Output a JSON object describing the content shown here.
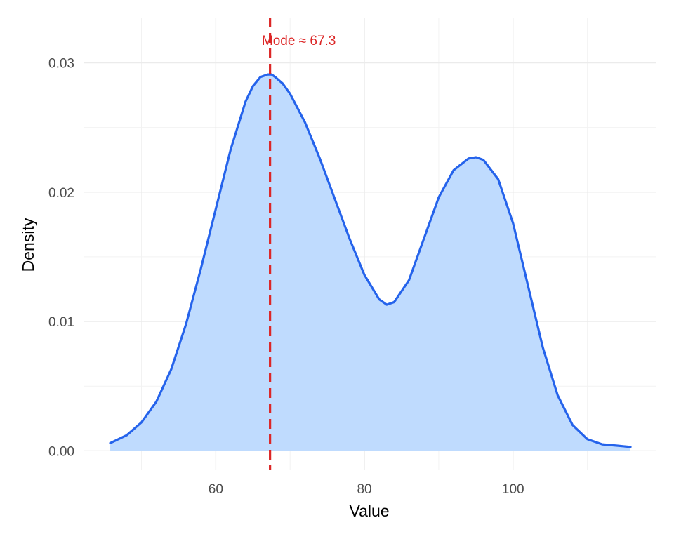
{
  "chart_data": {
    "type": "area",
    "title": "",
    "xlabel": "Value",
    "ylabel": "Density",
    "xlim": [
      42.3,
      119.2
    ],
    "ylim": [
      -0.0015,
      0.0335
    ],
    "x_ticks": [
      60,
      80,
      100
    ],
    "x_tick_labels": [
      "60",
      "80",
      "100"
    ],
    "x_minor_ticks": [
      50,
      70,
      90,
      110
    ],
    "y_ticks": [
      0.0,
      0.01,
      0.02,
      0.03
    ],
    "y_tick_labels": [
      "0.00",
      "0.01",
      "0.02",
      "0.03"
    ],
    "y_minor_ticks": [
      0.005,
      0.015,
      0.025
    ],
    "grid": true,
    "legend": "none",
    "fill_color": "#bfdbfe",
    "line_color": "#2563eb",
    "series": [
      {
        "x": [
          45.8,
          48,
          50,
          52,
          54,
          56,
          58,
          60,
          62,
          64,
          65,
          66,
          67,
          67.5,
          68,
          69,
          70,
          72,
          74,
          76,
          78,
          80,
          82,
          83,
          84,
          86,
          88,
          90,
          92,
          94,
          95,
          96,
          98,
          100,
          102,
          104,
          106,
          108,
          110,
          112,
          114,
          115.8
        ],
        "y": [
          0.0006,
          0.0012,
          0.0022,
          0.0038,
          0.0063,
          0.0098,
          0.0141,
          0.0187,
          0.0233,
          0.027,
          0.0282,
          0.0289,
          0.0291,
          0.0291,
          0.0289,
          0.0284,
          0.0276,
          0.0254,
          0.0226,
          0.0195,
          0.0164,
          0.0136,
          0.0117,
          0.0113,
          0.0115,
          0.0132,
          0.0164,
          0.0196,
          0.0217,
          0.0226,
          0.0227,
          0.0225,
          0.021,
          0.0176,
          0.0128,
          0.008,
          0.0043,
          0.002,
          0.0009,
          0.0005,
          0.0004,
          0.0003
        ]
      }
    ],
    "annotations": [
      {
        "type": "vline",
        "x": 67.3,
        "color": "#dc2626",
        "style": "dashed",
        "label": "Mode ≈ 67.3"
      }
    ]
  }
}
